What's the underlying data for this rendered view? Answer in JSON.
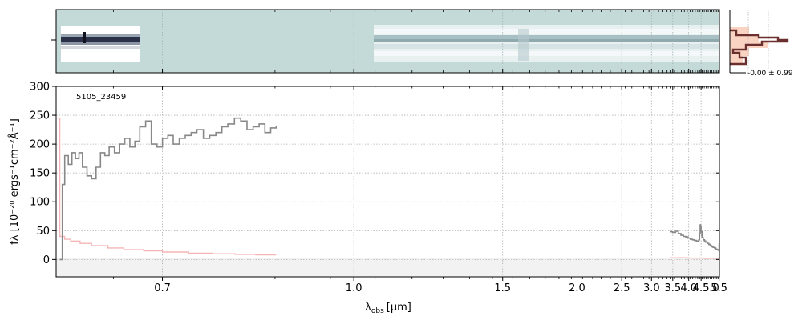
{
  "chart_data": [
    {
      "type": "image",
      "panel": "2d-spectrum",
      "description_visible": "two-dimensional spectrum strip",
      "colors": {
        "background": "#c4dad9",
        "trace_dark": "#1e2436",
        "trace_light": "#eef4f4"
      }
    },
    {
      "type": "line",
      "panel": "1d-spectrum",
      "annotation": "5105_23459",
      "xlabel_main": "λ",
      "xlabel_sub": "obs",
      "xlabel_unit": "[μm]",
      "ylabel": "fλ [10⁻²⁰ ergs⁻¹cm⁻²Å⁻¹]",
      "xscale": "reciprocal",
      "xlim": [
        0.6,
        5.52
      ],
      "ylim": [
        -30,
        300
      ],
      "x_ticks": [
        "0.7",
        "1.0",
        "1.5",
        "2.0",
        "2.5",
        "3.0",
        "3.5",
        "4.0",
        "4.5",
        "5.0",
        "5.5"
      ],
      "x_tick_values": [
        0.7,
        1.0,
        1.5,
        2.0,
        2.5,
        3.0,
        3.5,
        4.0,
        4.5,
        5.0,
        5.5
      ],
      "y_ticks": [
        "0",
        "50",
        "100",
        "150",
        "200",
        "250",
        "300"
      ],
      "y_tick_values": [
        0,
        50,
        100,
        150,
        200,
        250,
        300
      ],
      "grid": true,
      "series": [
        {
          "role": "flux",
          "color": "#888888",
          "segments": [
            [
              [
                0.603,
                0
              ],
              [
                0.605,
                130
              ],
              [
                0.607,
                180
              ],
              [
                0.61,
                165
              ],
              [
                0.613,
                185
              ],
              [
                0.616,
                175
              ],
              [
                0.619,
                185
              ],
              [
                0.622,
                160
              ],
              [
                0.626,
                145
              ],
              [
                0.63,
                140
              ],
              [
                0.634,
                160
              ],
              [
                0.638,
                185
              ],
              [
                0.642,
                180
              ],
              [
                0.646,
                195
              ],
              [
                0.651,
                185
              ],
              [
                0.656,
                200
              ],
              [
                0.661,
                210
              ],
              [
                0.666,
                195
              ],
              [
                0.671,
                205
              ],
              [
                0.676,
                230
              ],
              [
                0.682,
                240
              ],
              [
                0.688,
                200
              ],
              [
                0.694,
                195
              ],
              [
                0.7,
                210
              ],
              [
                0.706,
                215
              ],
              [
                0.712,
                200
              ],
              [
                0.719,
                210
              ],
              [
                0.726,
                215
              ],
              [
                0.733,
                220
              ],
              [
                0.74,
                225
              ],
              [
                0.748,
                210
              ],
              [
                0.756,
                215
              ],
              [
                0.764,
                220
              ],
              [
                0.772,
                230
              ],
              [
                0.78,
                235
              ],
              [
                0.789,
                245
              ],
              [
                0.798,
                240
              ],
              [
                0.807,
                225
              ],
              [
                0.816,
                230
              ],
              [
                0.825,
                235
              ],
              [
                0.834,
                220
              ],
              [
                0.843,
                228
              ],
              [
                0.852,
                232
              ]
            ],
            [
              [
                3.43,
                48
              ],
              [
                3.5,
                47
              ],
              [
                3.58,
                49
              ],
              [
                3.66,
                45
              ],
              [
                3.74,
                42
              ],
              [
                3.82,
                40
              ],
              [
                3.9,
                39
              ],
              [
                3.98,
                37
              ],
              [
                4.06,
                35
              ],
              [
                4.14,
                34
              ],
              [
                4.22,
                33
              ],
              [
                4.3,
                32
              ],
              [
                4.36,
                31
              ],
              [
                4.4,
                34
              ],
              [
                4.43,
                45
              ],
              [
                4.46,
                60
              ],
              [
                4.48,
                58
              ],
              [
                4.5,
                48
              ],
              [
                4.54,
                38
              ],
              [
                4.6,
                34
              ],
              [
                4.66,
                32
              ],
              [
                4.72,
                30
              ],
              [
                4.8,
                28
              ],
              [
                4.88,
                26
              ],
              [
                4.96,
                24
              ],
              [
                5.04,
                22
              ],
              [
                5.12,
                21
              ],
              [
                5.2,
                20
              ],
              [
                5.28,
                18
              ],
              [
                5.36,
                17
              ],
              [
                5.44,
                16
              ],
              [
                5.48,
                15
              ],
              [
                5.5,
                28
              ]
            ]
          ]
        },
        {
          "role": "uncertainty",
          "color": "#f4b6b6",
          "segments": [
            [
              [
                0.601,
                245
              ],
              [
                0.603,
                40
              ],
              [
                0.607,
                35
              ],
              [
                0.612,
                32
              ],
              [
                0.62,
                28
              ],
              [
                0.63,
                24
              ],
              [
                0.645,
                20
              ],
              [
                0.66,
                17
              ],
              [
                0.68,
                15
              ],
              [
                0.7,
                13
              ],
              [
                0.73,
                11
              ],
              [
                0.76,
                10
              ],
              [
                0.79,
                9
              ],
              [
                0.82,
                8
              ],
              [
                0.852,
                8
              ]
            ],
            [
              [
                3.43,
                3
              ],
              [
                3.6,
                3
              ],
              [
                3.8,
                3
              ],
              [
                4.0,
                2.5
              ],
              [
                4.2,
                2.5
              ],
              [
                4.4,
                2.5
              ],
              [
                4.6,
                2
              ],
              [
                4.8,
                2
              ],
              [
                5.0,
                2
              ],
              [
                5.2,
                2
              ],
              [
                5.4,
                2
              ],
              [
                5.48,
                3
              ],
              [
                5.5,
                8
              ]
            ]
          ]
        }
      ]
    },
    {
      "type": "histogram",
      "panel": "residual-histogram",
      "annotation": "-0.00 ± 0.99",
      "colors": {
        "step": "#6b2f2f",
        "fill": "#fbd3c2"
      }
    }
  ]
}
